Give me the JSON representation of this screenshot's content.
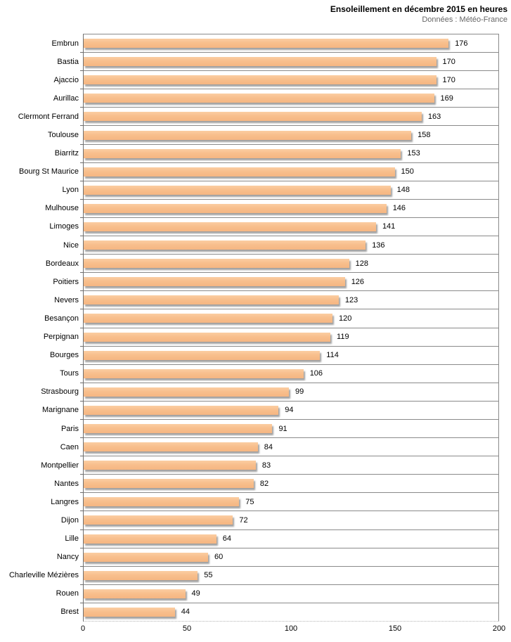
{
  "header": {
    "title": "Ensoleillement en décembre 2015 en heures",
    "subtitle": "Données : Météo-France"
  },
  "chart_data": {
    "type": "bar",
    "orientation": "horizontal",
    "title": "Ensoleillement en décembre 2015 en heures",
    "subtitle": "Données : Météo-France",
    "categories": [
      "Embrun",
      "Bastia",
      "Ajaccio",
      "Aurillac",
      "Clermont Ferrand",
      "Toulouse",
      "Biarritz",
      "Bourg St Maurice",
      "Lyon",
      "Mulhouse",
      "Limoges",
      "Nice",
      "Bordeaux",
      "Poitiers",
      "Nevers",
      "Besançon",
      "Perpignan",
      "Bourges",
      "Tours",
      "Strasbourg",
      "Marignane",
      "Paris",
      "Caen",
      "Montpellier",
      "Nantes",
      "Langres",
      "Dijon",
      "Lille",
      "Nancy",
      "Charleville Mézières",
      "Rouen",
      "Brest"
    ],
    "values": [
      176,
      170,
      170,
      169,
      163,
      158,
      153,
      150,
      148,
      146,
      141,
      136,
      128,
      126,
      123,
      120,
      119,
      114,
      106,
      99,
      94,
      91,
      84,
      83,
      82,
      75,
      72,
      64,
      60,
      55,
      49,
      44
    ],
    "xlabel": "",
    "ylabel": "",
    "xlim": [
      0,
      200
    ],
    "x_ticks": [
      0,
      50,
      100,
      150,
      200
    ],
    "unit": "heures",
    "grid": "row-separator-lines",
    "legend": "none",
    "colors": {
      "bar_fill": "#F8BF8D",
      "bar_shadow": "#9A9A9A",
      "plot_border": "#8A8A8A",
      "axis_line": "#6E6E6E",
      "title_color": "#000000",
      "subtitle_color": "#666666",
      "label_color": "#000000",
      "background": "#FFFFFF"
    }
  }
}
